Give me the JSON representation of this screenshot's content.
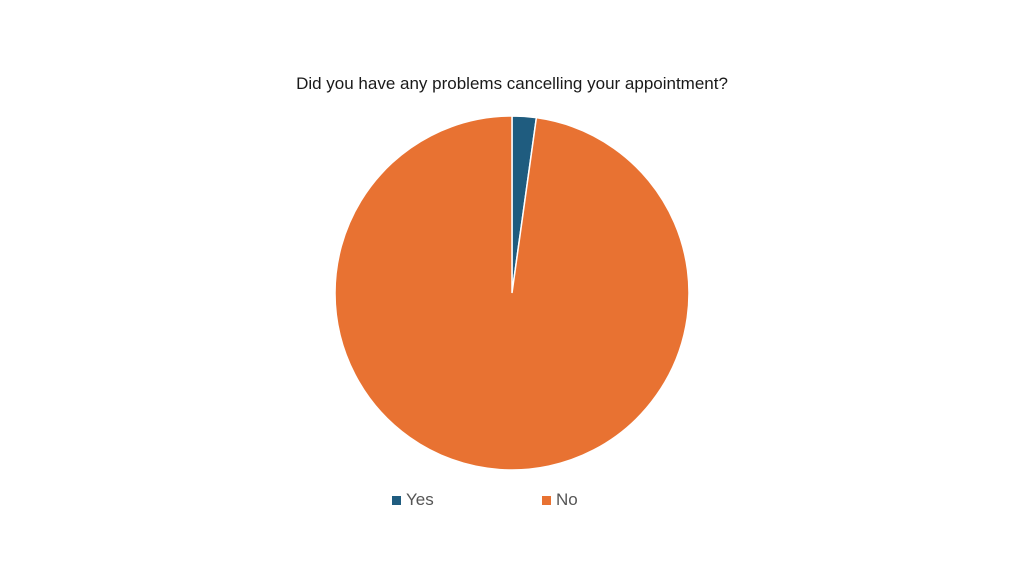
{
  "chart_data": {
    "type": "pie",
    "title": "Did you have any problems cancelling your appointment?",
    "series": [
      {
        "name": "Yes",
        "value": 2.2,
        "color": "#1f5c7f"
      },
      {
        "name": "No",
        "value": 97.8,
        "color": "#e87232"
      }
    ],
    "legend_position": "bottom"
  }
}
